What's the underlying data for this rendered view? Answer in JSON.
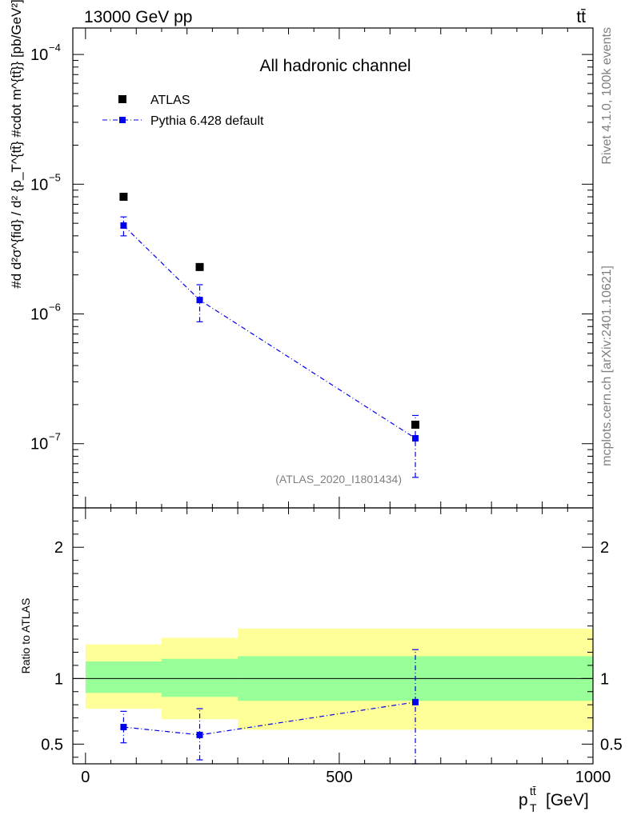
{
  "header": {
    "left": "13000 GeV pp",
    "right": "tt̄"
  },
  "side_labels": {
    "rivet": "Rivet 4.1.0,  100k events",
    "mcplots": "mcplots.cern.ch [arXiv:2401.10621]"
  },
  "chart_data": [
    {
      "type": "scatter",
      "title": "All hadronic channel",
      "analysis_tag": "(ATLAS_2020_I1801434)",
      "ylabel": "#d d²σ^{fid} / d² {p_T^{tt̄} #cdot m^{tt̄}} [pb/GeV²]",
      "yscale": "log",
      "ylim": [
        3.2e-08,
        0.00016
      ],
      "xlim": [
        -25,
        1000
      ],
      "y_ticks": [
        {
          "value": 0.0001,
          "base": "10",
          "exp": "−4"
        },
        {
          "value": 1e-05,
          "base": "10",
          "exp": "−5"
        },
        {
          "value": 1e-06,
          "base": "10",
          "exp": "−6"
        },
        {
          "value": 1e-07,
          "base": "10",
          "exp": "−7"
        }
      ],
      "legend": [
        {
          "label": "ATLAS",
          "color": "#000000"
        },
        {
          "label": "Pythia 6.428 default",
          "color": "#0000ee"
        }
      ],
      "series": [
        {
          "name": "ATLAS",
          "color": "#000000",
          "x": [
            75,
            225,
            650
          ],
          "y": [
            8e-06,
            2.3e-06,
            1.4e-07
          ]
        },
        {
          "name": "Pythia 6.428 default",
          "color": "#0000ee",
          "x": [
            75,
            225,
            650
          ],
          "y": [
            4.8e-06,
            1.28e-06,
            1.1e-07
          ],
          "err_low": [
            4e-06,
            8.7e-07,
            5.5e-08
          ],
          "err_high": [
            5.6e-06,
            1.68e-06,
            1.65e-07
          ]
        }
      ]
    },
    {
      "type": "scatter",
      "ylabel": "Ratio to ATLAS",
      "xlabel": "p_T^{tt̄} [GeV]",
      "xlabel_main": "p",
      "xlabel_sub": "T",
      "xlabel_sup": "tt̄",
      "xlabel_unit": "[GeV]",
      "ylim": [
        0.35,
        2.3
      ],
      "xlim": [
        -25,
        1000
      ],
      "x_ticks": [
        {
          "value": 0,
          "label": "0"
        },
        {
          "value": 500,
          "label": "500"
        },
        {
          "value": 1000,
          "label": "1000"
        }
      ],
      "y_ticks": [
        {
          "value": 0.5,
          "label": "0.5"
        },
        {
          "value": 1,
          "label": "1"
        },
        {
          "value": 2,
          "label": "2"
        }
      ],
      "bands": [
        {
          "xlo": 0,
          "xhi": 150,
          "yellow": [
            0.77,
            1.26
          ],
          "green": [
            0.89,
            1.13
          ]
        },
        {
          "xlo": 150,
          "xhi": 300,
          "yellow": [
            0.69,
            1.31
          ],
          "green": [
            0.86,
            1.15
          ]
        },
        {
          "xlo": 300,
          "xhi": 1000,
          "yellow": [
            0.61,
            1.38
          ],
          "green": [
            0.83,
            1.17
          ]
        }
      ],
      "series": [
        {
          "name": "Pythia 6.428 default",
          "color": "#0000ee",
          "x": [
            75,
            225,
            650
          ],
          "y": [
            0.63,
            0.57,
            0.82
          ],
          "err_low": [
            0.51,
            0.38,
            0.35
          ],
          "err_high": [
            0.75,
            0.77,
            1.22
          ]
        }
      ]
    }
  ]
}
